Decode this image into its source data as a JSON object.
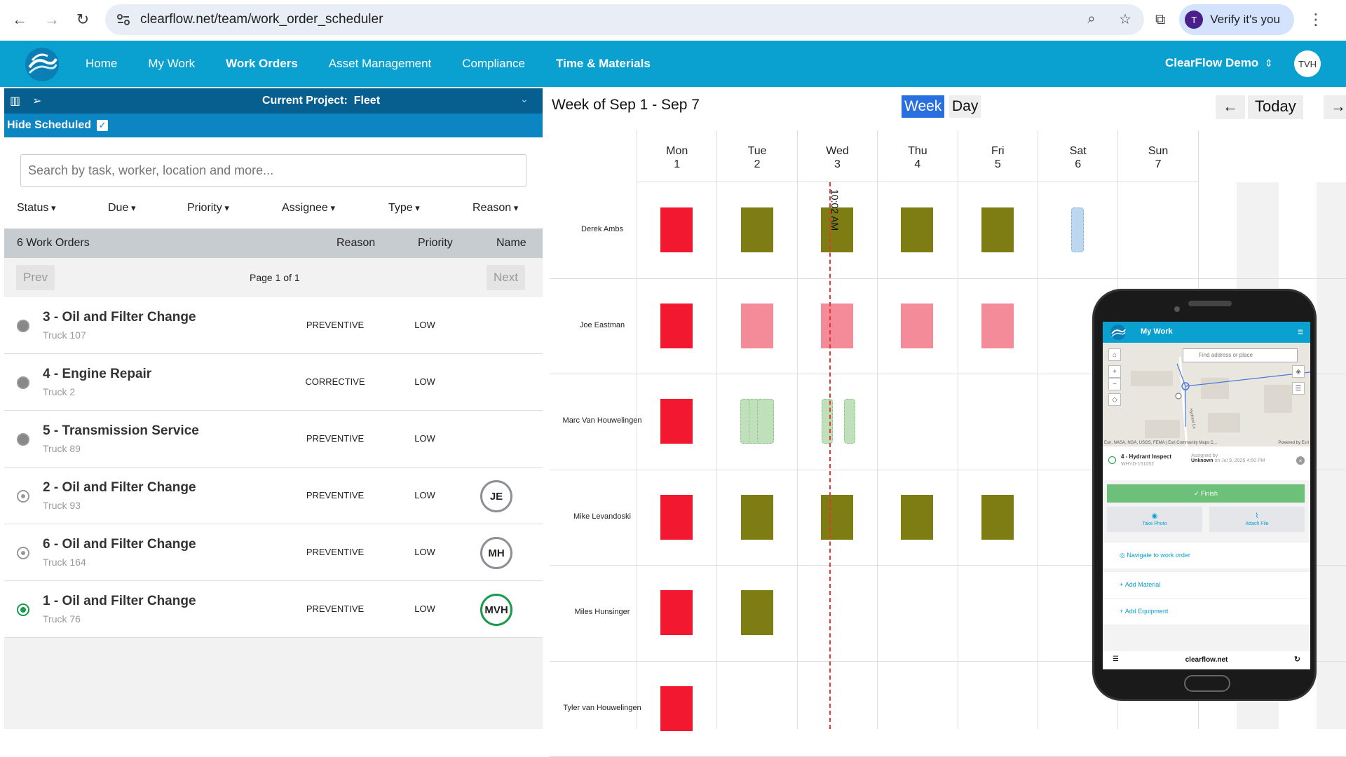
{
  "browser": {
    "url": "clearflow.net/team/work_order_scheduler",
    "verify_label": "Verify it's you",
    "avatar_letter": "T"
  },
  "app": {
    "nav": [
      "Home",
      "My Work",
      "Work Orders",
      "Asset Management",
      "Compliance",
      "Time & Materials"
    ],
    "account": "ClearFlow Demo",
    "user_initials": "TVH"
  },
  "left": {
    "project_label": "Current Project:",
    "project_name": "Fleet",
    "hide_scheduled": "Hide Scheduled",
    "search_placeholder": "Search by task, worker, location and more...",
    "filters": [
      "Status",
      "Due",
      "Priority",
      "Assignee",
      "Type",
      "Reason"
    ],
    "count": "6 Work Orders",
    "columns": [
      "Reason",
      "Priority",
      "Name"
    ],
    "prev": "Prev",
    "next": "Next",
    "page": "Page 1 of 1",
    "orders": [
      {
        "title": "3 - Oil and Filter Change",
        "asset": "Truck 107",
        "reason": "PREVENTIVE",
        "priority": "LOW",
        "assignee": ""
      },
      {
        "title": "4 - Engine Repair",
        "asset": "Truck 2",
        "reason": "CORRECTIVE",
        "priority": "LOW",
        "assignee": ""
      },
      {
        "title": "5 - Transmission Service",
        "asset": "Truck 89",
        "reason": "PREVENTIVE",
        "priority": "LOW",
        "assignee": ""
      },
      {
        "title": "2 - Oil and Filter Change",
        "asset": "Truck 93",
        "reason": "PREVENTIVE",
        "priority": "LOW",
        "assignee": "JE"
      },
      {
        "title": "6 - Oil and Filter Change",
        "asset": "Truck 164",
        "reason": "PREVENTIVE",
        "priority": "LOW",
        "assignee": "MH"
      },
      {
        "title": "1 - Oil and Filter Change",
        "asset": "Truck 76",
        "reason": "PREVENTIVE",
        "priority": "LOW",
        "assignee": "MVH"
      }
    ]
  },
  "scheduler": {
    "title": "Week of Sep 1 - Sep 7",
    "week": "Week",
    "day": "Day",
    "today": "Today",
    "prev_arrow": "←",
    "next_arrow": "→",
    "now_label": "10:02 AM",
    "days": [
      {
        "name": "Mon",
        "num": "1"
      },
      {
        "name": "Tue",
        "num": "2"
      },
      {
        "name": "Wed",
        "num": "3"
      },
      {
        "name": "Thu",
        "num": "4"
      },
      {
        "name": "Fri",
        "num": "5"
      },
      {
        "name": "Sat",
        "num": "6"
      },
      {
        "name": "Sun",
        "num": "7"
      }
    ],
    "workers": [
      "Derek Ambs",
      "Joe Eastman",
      "Marc Van Houwelingen",
      "Mike Levandoski",
      "Miles Hunsinger",
      "Tyler van Houwelingen"
    ]
  },
  "phone": {
    "title": "My Work",
    "find_placeholder": "Find address or place",
    "attribution": "Esri, NASA, NGA, USGS, FEMA | Esri Community Maps C...",
    "powered": "Powered by Esri",
    "street": "Hydrant Ln",
    "wo_name": "4 - Hydrant Inspect",
    "wo_id": "WHYD-151052",
    "assigned_by": "Assigned by",
    "assigned_name": "Unknown",
    "assigned_date": "on Jul 9, 2025 4:50 PM",
    "finish": "Finish",
    "take_photo": "Take Photo",
    "attach_file": "Attach File",
    "navigate": "Navigate to work order",
    "add_material": "Add Material",
    "add_equipment": "Add Equipment",
    "url": "clearflow.net"
  }
}
